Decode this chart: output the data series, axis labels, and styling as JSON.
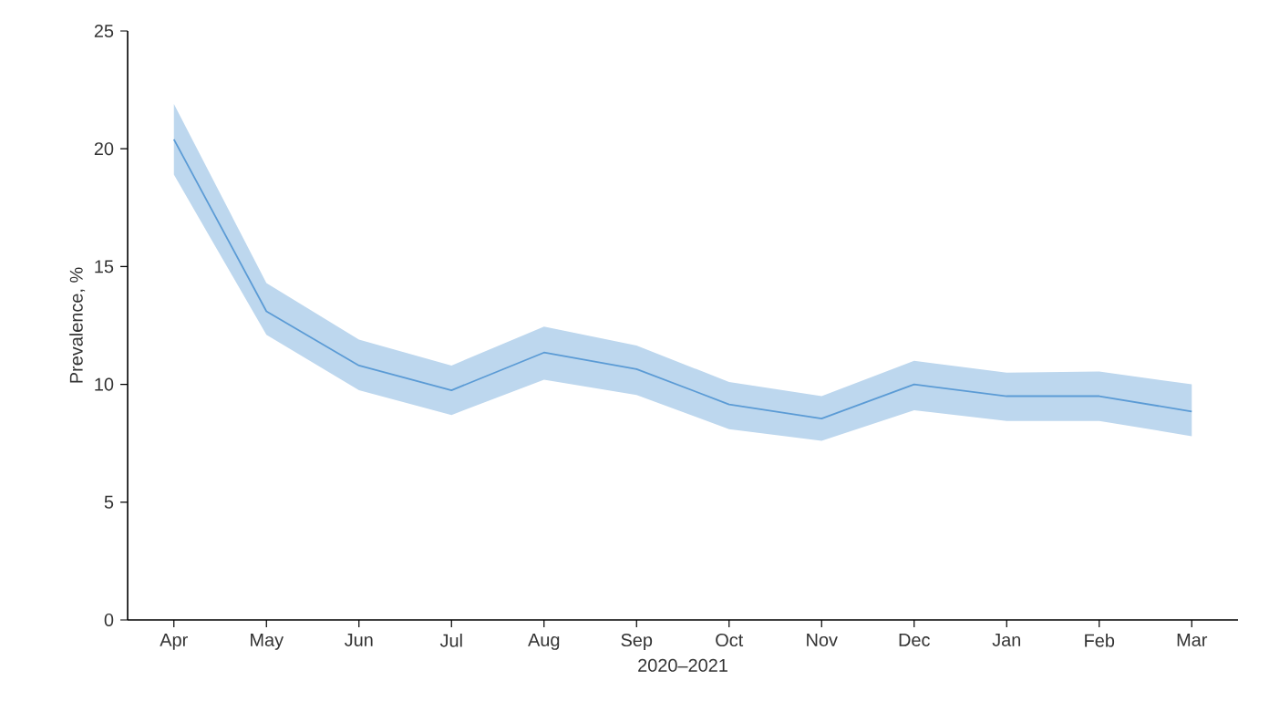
{
  "chart_data": {
    "type": "line",
    "xlabel": "2020–2021",
    "ylabel": "Prevalence, %",
    "categories": [
      "Apr",
      "May",
      "Jun",
      "Jul",
      "Aug",
      "Sep",
      "Oct",
      "Nov",
      "Dec",
      "Jan",
      "Feb",
      "Mar"
    ],
    "series": [
      {
        "color": "#5b9bd5",
        "values": [
          20.4,
          13.1,
          10.8,
          9.75,
          11.35,
          10.65,
          9.15,
          8.55,
          10.0,
          9.5,
          9.5,
          8.85
        ],
        "lower": [
          18.9,
          12.1,
          9.75,
          8.7,
          10.2,
          9.55,
          8.1,
          7.6,
          8.9,
          8.45,
          8.45,
          7.8
        ],
        "upper": [
          21.9,
          14.3,
          11.9,
          10.8,
          12.45,
          11.65,
          10.1,
          9.5,
          11.0,
          10.5,
          10.55,
          10.0
        ]
      }
    ],
    "ylim": [
      0,
      25
    ],
    "yticks": [
      0,
      5,
      10,
      15,
      20,
      25
    ],
    "grid": false,
    "marker": "none",
    "line_style": "solid"
  }
}
